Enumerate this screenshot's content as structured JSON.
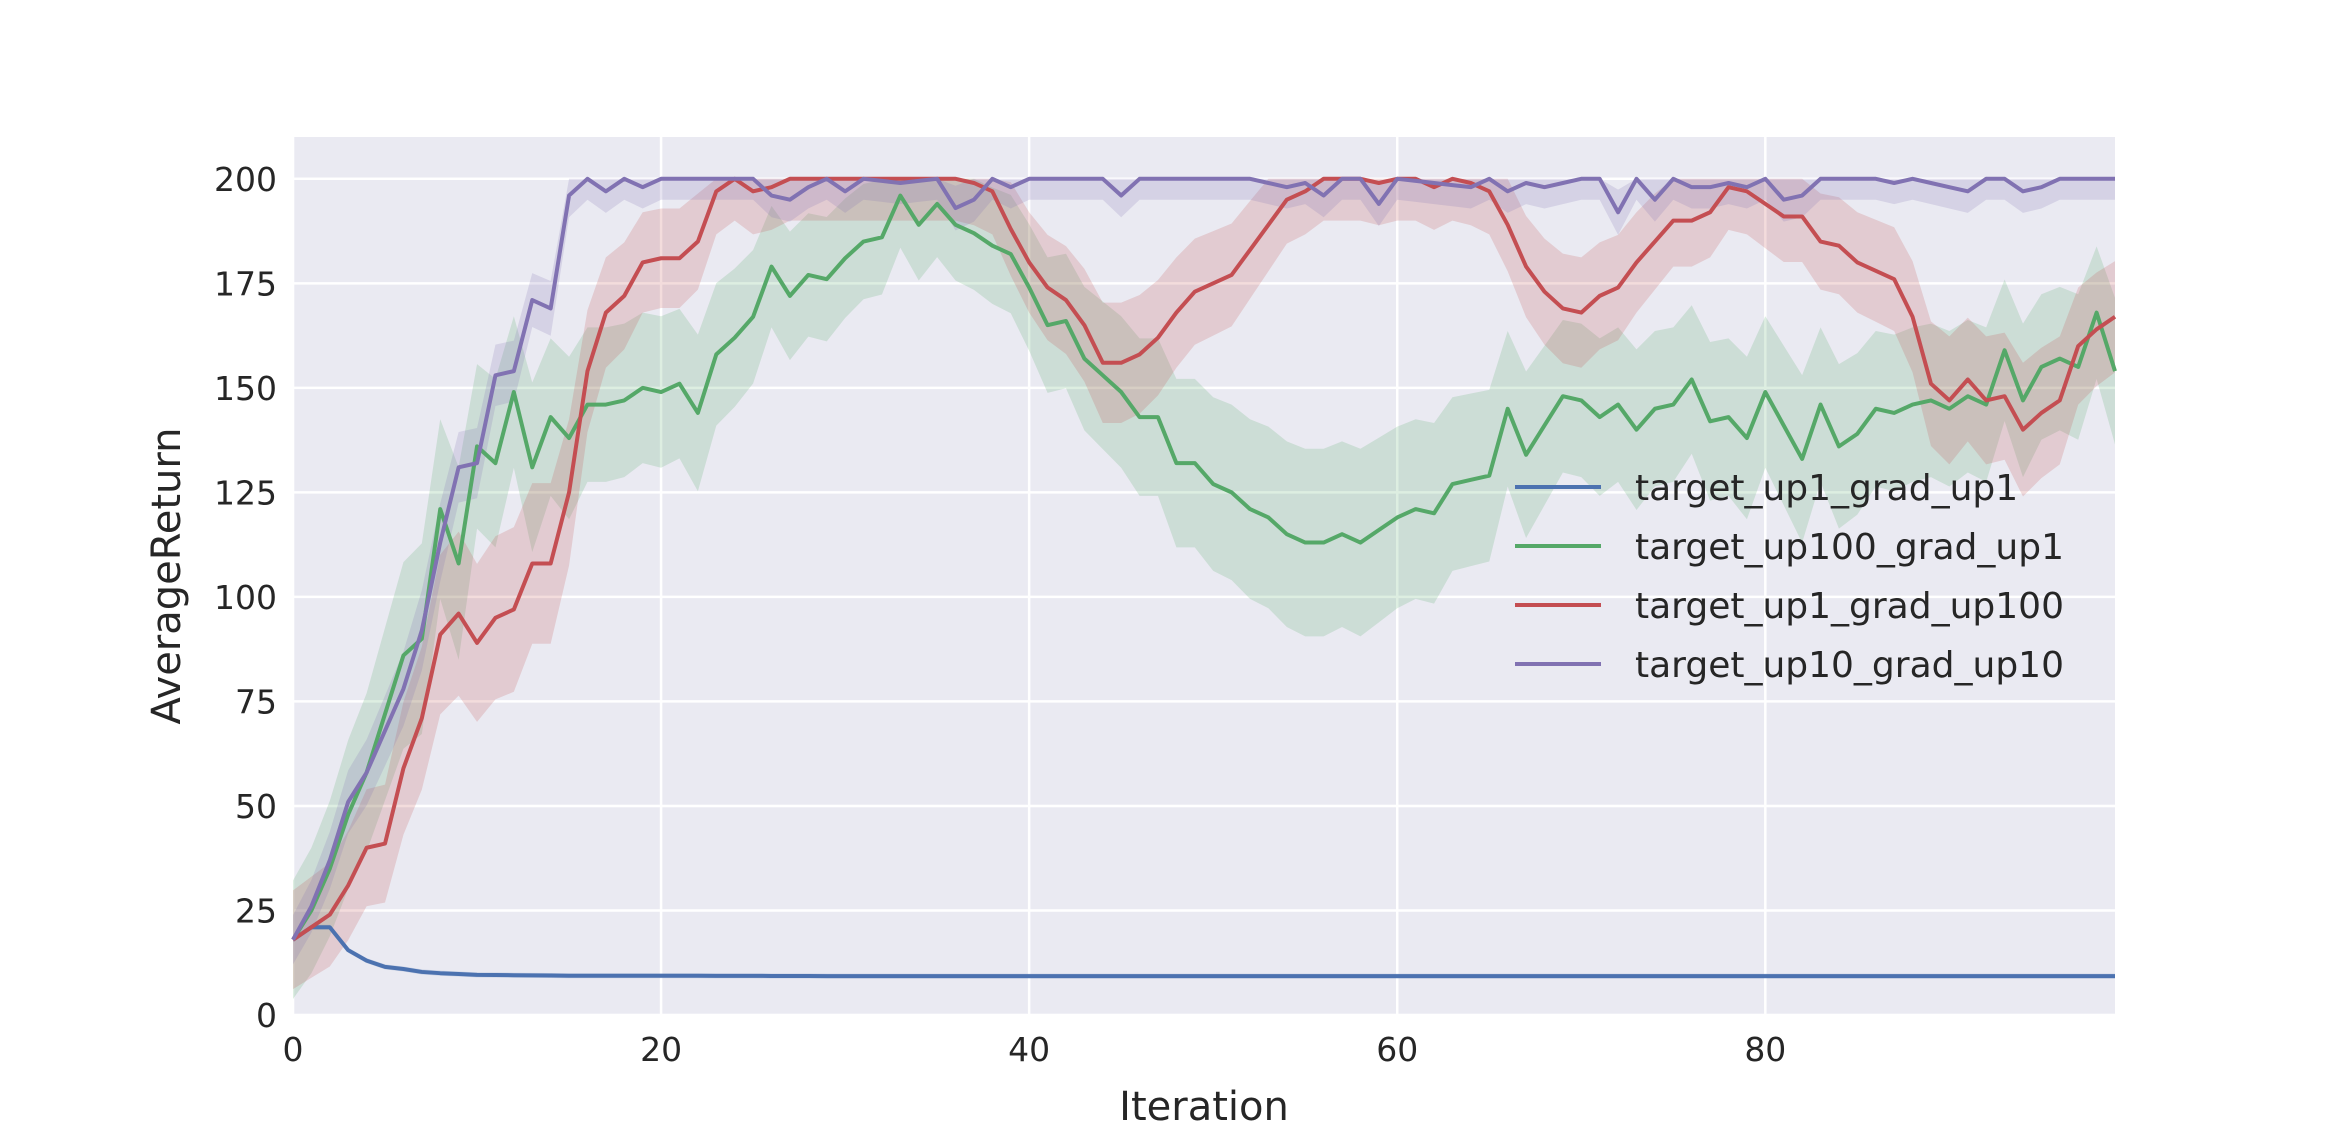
{
  "chart_data": {
    "type": "line",
    "title": "",
    "xlabel": "Iteration",
    "ylabel": "AverageReturn",
    "xlim": [
      0,
      99
    ],
    "ylim": [
      0,
      210
    ],
    "xticks": [
      0,
      20,
      40,
      60,
      80
    ],
    "yticks": [
      0,
      25,
      50,
      75,
      100,
      125,
      150,
      175,
      200
    ],
    "grid": true,
    "legend_position": "center-right",
    "background": "#eaeaf2",
    "series": [
      {
        "name": "target_up1_grad_up1",
        "color": "#4c72b0",
        "anchors": [
          [
            0,
            18
          ],
          [
            1,
            21
          ],
          [
            2,
            21
          ],
          [
            3,
            15.5
          ],
          [
            4,
            13
          ],
          [
            5,
            11.5
          ],
          [
            6,
            11
          ],
          [
            7,
            10.3
          ],
          [
            8,
            10
          ],
          [
            10,
            9.6
          ],
          [
            15,
            9.4
          ],
          [
            20,
            9.4
          ],
          [
            30,
            9.3
          ],
          [
            40,
            9.3
          ],
          [
            50,
            9.3
          ],
          [
            60,
            9.3
          ],
          [
            70,
            9.3
          ],
          [
            80,
            9.3
          ],
          [
            90,
            9.3
          ],
          [
            99,
            9.3
          ]
        ],
        "band": 0.6
      },
      {
        "name": "target_up100_grad_up1",
        "color": "#55a868",
        "anchors": [
          [
            0,
            18
          ],
          [
            1,
            25
          ],
          [
            2,
            35
          ],
          [
            3,
            48
          ],
          [
            4,
            58
          ],
          [
            5,
            72
          ],
          [
            6,
            86
          ],
          [
            7,
            90
          ],
          [
            8,
            121
          ],
          [
            9,
            108
          ],
          [
            10,
            136
          ],
          [
            11,
            132
          ],
          [
            12,
            149
          ],
          [
            13,
            131
          ],
          [
            14,
            143
          ],
          [
            15,
            138
          ],
          [
            16,
            146
          ],
          [
            17,
            146
          ],
          [
            18,
            147
          ],
          [
            19,
            150
          ],
          [
            20,
            149
          ],
          [
            21,
            151
          ],
          [
            22,
            144
          ],
          [
            23,
            158
          ],
          [
            24,
            162
          ],
          [
            25,
            167
          ],
          [
            26,
            179
          ],
          [
            27,
            172
          ],
          [
            28,
            177
          ],
          [
            29,
            176
          ],
          [
            30,
            181
          ],
          [
            31,
            185
          ],
          [
            32,
            186
          ],
          [
            33,
            196
          ],
          [
            34,
            189
          ],
          [
            35,
            194
          ],
          [
            36,
            189
          ],
          [
            37,
            187
          ],
          [
            38,
            184
          ],
          [
            39,
            182
          ],
          [
            40,
            174
          ],
          [
            41,
            165
          ],
          [
            42,
            166
          ],
          [
            43,
            157
          ],
          [
            44,
            153
          ],
          [
            45,
            149
          ],
          [
            46,
            143
          ],
          [
            47,
            143
          ],
          [
            48,
            132
          ],
          [
            49,
            132
          ],
          [
            50,
            127
          ],
          [
            51,
            125
          ],
          [
            52,
            121
          ],
          [
            53,
            119
          ],
          [
            54,
            115
          ],
          [
            55,
            113
          ],
          [
            56,
            113
          ],
          [
            57,
            115
          ],
          [
            58,
            113
          ],
          [
            59,
            116
          ],
          [
            60,
            119
          ],
          [
            61,
            121
          ],
          [
            62,
            120
          ],
          [
            63,
            127
          ],
          [
            64,
            128
          ],
          [
            65,
            129
          ],
          [
            66,
            145
          ],
          [
            67,
            134
          ],
          [
            68,
            141
          ],
          [
            69,
            148
          ],
          [
            70,
            147
          ],
          [
            71,
            143
          ],
          [
            72,
            146
          ],
          [
            73,
            140
          ],
          [
            74,
            145
          ],
          [
            75,
            146
          ],
          [
            76,
            152
          ],
          [
            77,
            142
          ],
          [
            78,
            143
          ],
          [
            79,
            138
          ],
          [
            80,
            149
          ],
          [
            81,
            141
          ],
          [
            82,
            133
          ],
          [
            83,
            146
          ],
          [
            84,
            136
          ],
          [
            85,
            139
          ],
          [
            86,
            145
          ],
          [
            87,
            144
          ],
          [
            88,
            146
          ],
          [
            89,
            147
          ],
          [
            90,
            145
          ],
          [
            91,
            148
          ],
          [
            92,
            146
          ],
          [
            93,
            159
          ],
          [
            94,
            147
          ],
          [
            95,
            155
          ],
          [
            96,
            157
          ],
          [
            97,
            155
          ],
          [
            98,
            168
          ],
          [
            99,
            154
          ]
        ],
        "band_rel": 0.12
      },
      {
        "name": "target_up1_grad_up100",
        "color": "#c44e52",
        "anchors": [
          [
            0,
            18
          ],
          [
            1,
            21
          ],
          [
            2,
            24
          ],
          [
            3,
            31
          ],
          [
            4,
            40
          ],
          [
            5,
            41
          ],
          [
            6,
            59
          ],
          [
            7,
            71
          ],
          [
            8,
            91
          ],
          [
            9,
            96
          ],
          [
            10,
            89
          ],
          [
            11,
            95
          ],
          [
            12,
            97
          ],
          [
            13,
            108
          ],
          [
            14,
            108
          ],
          [
            15,
            125
          ],
          [
            16,
            154
          ],
          [
            17,
            168
          ],
          [
            18,
            172
          ],
          [
            19,
            180
          ],
          [
            20,
            181
          ],
          [
            21,
            181
          ],
          [
            22,
            185
          ],
          [
            23,
            197
          ],
          [
            24,
            200
          ],
          [
            25,
            197
          ],
          [
            26,
            198
          ],
          [
            27,
            200
          ],
          [
            30,
            200
          ],
          [
            35,
            200
          ],
          [
            36,
            200
          ],
          [
            37,
            199
          ],
          [
            38,
            197
          ],
          [
            39,
            188
          ],
          [
            40,
            180
          ],
          [
            41,
            174
          ],
          [
            42,
            171
          ],
          [
            43,
            165
          ],
          [
            44,
            156
          ],
          [
            45,
            156
          ],
          [
            46,
            158
          ],
          [
            47,
            162
          ],
          [
            48,
            168
          ],
          [
            49,
            173
          ],
          [
            50,
            175
          ],
          [
            51,
            177
          ],
          [
            52,
            183
          ],
          [
            53,
            189
          ],
          [
            54,
            195
          ],
          [
            55,
            197
          ],
          [
            56,
            200
          ],
          [
            58,
            200
          ],
          [
            59,
            199
          ],
          [
            60,
            200
          ],
          [
            61,
            200
          ],
          [
            62,
            198
          ],
          [
            63,
            200
          ],
          [
            64,
            199
          ],
          [
            65,
            197
          ],
          [
            66,
            189
          ],
          [
            67,
            179
          ],
          [
            68,
            173
          ],
          [
            69,
            169
          ],
          [
            70,
            168
          ],
          [
            71,
            172
          ],
          [
            72,
            174
          ],
          [
            73,
            180
          ],
          [
            74,
            185
          ],
          [
            75,
            190
          ],
          [
            76,
            190
          ],
          [
            77,
            192
          ],
          [
            78,
            198
          ],
          [
            79,
            197
          ],
          [
            80,
            194
          ],
          [
            81,
            191
          ],
          [
            82,
            191
          ],
          [
            83,
            185
          ],
          [
            84,
            184
          ],
          [
            85,
            180
          ],
          [
            86,
            178
          ],
          [
            87,
            176
          ],
          [
            88,
            167
          ],
          [
            89,
            151
          ],
          [
            90,
            147
          ],
          [
            91,
            152
          ],
          [
            92,
            147
          ],
          [
            93,
            148
          ],
          [
            94,
            140
          ],
          [
            95,
            144
          ],
          [
            96,
            147
          ],
          [
            97,
            160
          ],
          [
            98,
            164
          ],
          [
            99,
            167
          ]
        ],
        "band_rel": 0.1
      },
      {
        "name": "target_up10_grad_up10",
        "color": "#8172b2",
        "anchors": [
          [
            0,
            18
          ],
          [
            1,
            26
          ],
          [
            2,
            37
          ],
          [
            3,
            51
          ],
          [
            4,
            58
          ],
          [
            5,
            68
          ],
          [
            6,
            78
          ],
          [
            7,
            92
          ],
          [
            8,
            113
          ],
          [
            9,
            131
          ],
          [
            10,
            132
          ],
          [
            11,
            153
          ],
          [
            12,
            154
          ],
          [
            13,
            171
          ],
          [
            14,
            169
          ],
          [
            15,
            196
          ],
          [
            16,
            200
          ],
          [
            17,
            197
          ],
          [
            18,
            200
          ],
          [
            19,
            198
          ],
          [
            20,
            200
          ],
          [
            22,
            200
          ],
          [
            25,
            200
          ],
          [
            26,
            196
          ],
          [
            27,
            195
          ],
          [
            28,
            198
          ],
          [
            29,
            200
          ],
          [
            30,
            197
          ],
          [
            31,
            200
          ],
          [
            33,
            199
          ],
          [
            35,
            200
          ],
          [
            36,
            193
          ],
          [
            37,
            195
          ],
          [
            38,
            200
          ],
          [
            39,
            198
          ],
          [
            40,
            200
          ],
          [
            44,
            200
          ],
          [
            45,
            196
          ],
          [
            46,
            200
          ],
          [
            52,
            200
          ],
          [
            54,
            198
          ],
          [
            55,
            199
          ],
          [
            56,
            196
          ],
          [
            57,
            200
          ],
          [
            58,
            200
          ],
          [
            59,
            194
          ],
          [
            60,
            200
          ],
          [
            62,
            199
          ],
          [
            64,
            198
          ],
          [
            65,
            200
          ],
          [
            66,
            197
          ],
          [
            67,
            199
          ],
          [
            68,
            198
          ],
          [
            69,
            199
          ],
          [
            70,
            200
          ],
          [
            71,
            200
          ],
          [
            72,
            192
          ],
          [
            73,
            200
          ],
          [
            74,
            195
          ],
          [
            75,
            200
          ],
          [
            76,
            198
          ],
          [
            77,
            198
          ],
          [
            78,
            199
          ],
          [
            79,
            198
          ],
          [
            80,
            200
          ],
          [
            81,
            195
          ],
          [
            82,
            196
          ],
          [
            83,
            200
          ],
          [
            86,
            200
          ],
          [
            87,
            199
          ],
          [
            88,
            200
          ],
          [
            89,
            199
          ],
          [
            90,
            198
          ],
          [
            91,
            197
          ],
          [
            92,
            200
          ],
          [
            93,
            200
          ],
          [
            94,
            197
          ],
          [
            95,
            198
          ],
          [
            96,
            200
          ],
          [
            99,
            200
          ]
        ],
        "band_rel": 0.05
      }
    ]
  }
}
